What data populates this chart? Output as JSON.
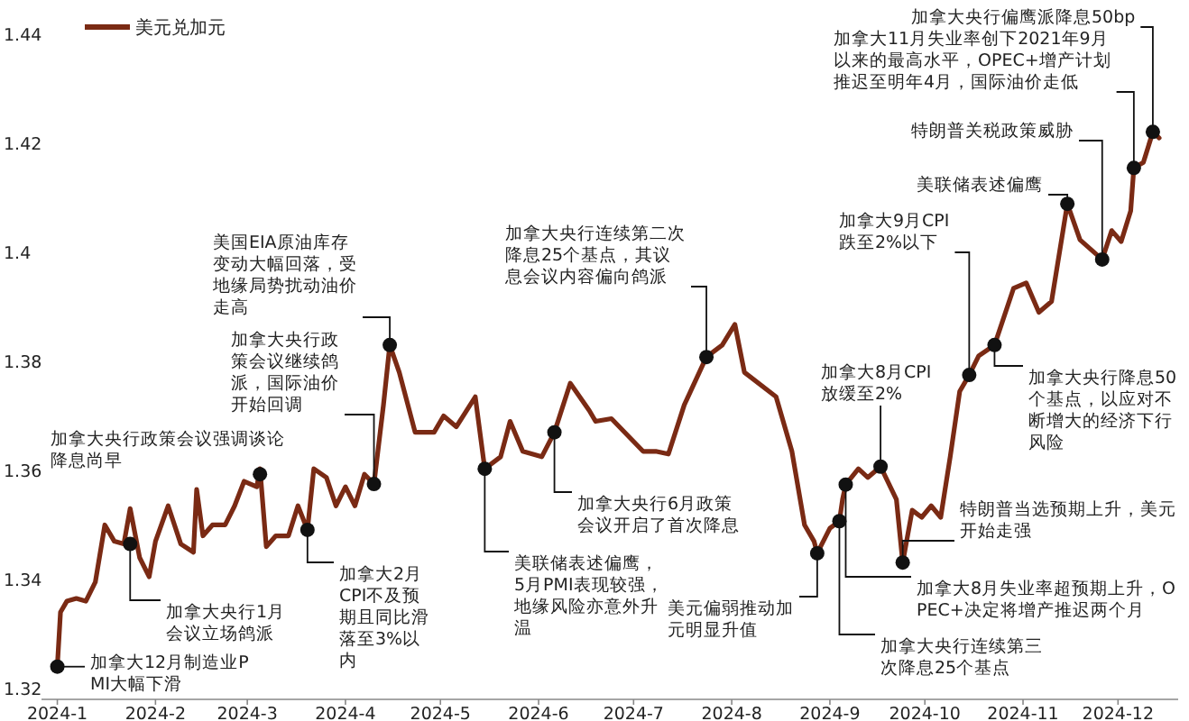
{
  "chart_data": {
    "type": "line",
    "legend": "top left",
    "marker": "none",
    "grid": false,
    "xlim": [
      "2023-12-27",
      "2024-12-20"
    ],
    "ylim": [
      1.318,
      1.44
    ],
    "xticks": [
      {
        "value": "2024-01-01",
        "label": "2024-1"
      },
      {
        "value": "2024-02-01",
        "label": "2024-2"
      },
      {
        "value": "2024-03-01",
        "label": "2024-3"
      },
      {
        "value": "2024-04-01",
        "label": "2024-4"
      },
      {
        "value": "2024-05-01",
        "label": "2024-5"
      },
      {
        "value": "2024-06-01",
        "label": "2024-6"
      },
      {
        "value": "2024-07-01",
        "label": "2024-7"
      },
      {
        "value": "2024-08-01",
        "label": "2024-8"
      },
      {
        "value": "2024-09-01",
        "label": "2024-9"
      },
      {
        "value": "2024-10-01",
        "label": "2024-10"
      },
      {
        "value": "2024-11-01",
        "label": "2024-11"
      },
      {
        "value": "2024-12-01",
        "label": "2024-12"
      }
    ],
    "yticks": [
      1.32,
      1.34,
      1.36,
      1.38,
      1.4,
      1.42,
      1.44
    ],
    "x": [
      "2024-01-01",
      "2024-01-02",
      "2024-01-04",
      "2024-01-07",
      "2024-01-10",
      "2024-01-13",
      "2024-01-16",
      "2024-01-19",
      "2024-01-22",
      "2024-01-24",
      "2024-01-27",
      "2024-01-30",
      "2024-02-01",
      "2024-02-05",
      "2024-02-09",
      "2024-02-13",
      "2024-02-14",
      "2024-02-16",
      "2024-02-19",
      "2024-02-23",
      "2024-02-26",
      "2024-02-29",
      "2024-03-04",
      "2024-03-05",
      "2024-03-07",
      "2024-03-10",
      "2024-03-14",
      "2024-03-17",
      "2024-03-20",
      "2024-03-22",
      "2024-03-26",
      "2024-03-29",
      "2024-04-01",
      "2024-04-04",
      "2024-04-07",
      "2024-04-10",
      "2024-04-13",
      "2024-04-15",
      "2024-04-18",
      "2024-04-23",
      "2024-04-29",
      "2024-05-02",
      "2024-05-06",
      "2024-05-12",
      "2024-05-15",
      "2024-05-20",
      "2024-05-23",
      "2024-05-27",
      "2024-06-02",
      "2024-06-06",
      "2024-06-11",
      "2024-06-17",
      "2024-06-19",
      "2024-06-24",
      "2024-07-04",
      "2024-07-08",
      "2024-07-12",
      "2024-07-17",
      "2024-07-24",
      "2024-07-29",
      "2024-08-02",
      "2024-08-05",
      "2024-08-15",
      "2024-08-20",
      "2024-08-24",
      "2024-08-27",
      "2024-08-28",
      "2024-09-01",
      "2024-09-04",
      "2024-09-05",
      "2024-09-06",
      "2024-09-10",
      "2024-09-13",
      "2024-09-17",
      "2024-09-22",
      "2024-09-24",
      "2024-09-27",
      "2024-09-30",
      "2024-10-03",
      "2024-10-06",
      "2024-10-09",
      "2024-10-12",
      "2024-10-15",
      "2024-10-18",
      "2024-10-23",
      "2024-10-29",
      "2024-11-02",
      "2024-11-06",
      "2024-11-10",
      "2024-11-15",
      "2024-11-19",
      "2024-11-26",
      "2024-11-29",
      "2024-12-02",
      "2024-12-05",
      "2024-12-06",
      "2024-12-09",
      "2024-12-12",
      "2024-12-14"
    ],
    "series": [
      {
        "name": "美元兑加元",
        "color": "#7a2a14",
        "values": [
          1.324,
          1.334,
          1.336,
          1.3365,
          1.336,
          1.3395,
          1.35,
          1.347,
          1.3465,
          1.353,
          1.344,
          1.3405,
          1.347,
          1.3535,
          1.3465,
          1.345,
          1.3565,
          1.348,
          1.35,
          1.35,
          1.3535,
          1.358,
          1.357,
          1.3603,
          1.346,
          1.348,
          1.348,
          1.3535,
          1.3491,
          1.3603,
          1.3587,
          1.3535,
          1.357,
          1.3535,
          1.3593,
          1.3575,
          1.372,
          1.383,
          1.378,
          1.367,
          1.367,
          1.37,
          1.368,
          1.3735,
          1.3603,
          1.3625,
          1.369,
          1.3635,
          1.3625,
          1.367,
          1.376,
          1.371,
          1.369,
          1.3695,
          1.3635,
          1.3635,
          1.363,
          1.372,
          1.3808,
          1.383,
          1.3868,
          1.378,
          1.3735,
          1.3635,
          1.35,
          1.347,
          1.3448,
          1.3494,
          1.3507,
          1.3547,
          1.3574,
          1.3603,
          1.3587,
          1.3607,
          1.3547,
          1.3431,
          1.3527,
          1.3514,
          1.3535,
          1.3514,
          1.3625,
          1.3745,
          1.3775,
          1.381,
          1.383,
          1.3934,
          1.3944,
          1.389,
          1.391,
          1.4089,
          1.4023,
          1.3987,
          1.404,
          1.402,
          1.4076,
          1.4155,
          1.4165,
          1.4221,
          1.421
        ]
      }
    ],
    "annotations": [
      {
        "text": "加拿大12月制造业PMI大幅下滑",
        "x": "2024-01-01",
        "y": 1.324
      },
      {
        "text": "加拿大央行1月会议立场鸽派",
        "x": "2024-01-24",
        "y": 1.3465
      },
      {
        "text": "加拿大央行政策会议强调谈论降息尚早",
        "x": "2024-03-05",
        "y": 1.3593
      },
      {
        "text": "加拿大2月CPI不及预期且同比滑落至3%以内",
        "x": "2024-03-20",
        "y": 1.3491
      },
      {
        "text": "加拿大央行政策会议继续鸽派，国际油价开始回调",
        "x": "2024-04-10",
        "y": 1.3575
      },
      {
        "text": "美国EIA原油库存变动大幅回落，受地缘局势扰动油价走高",
        "x": "2024-04-15",
        "y": 1.383
      },
      {
        "text": "美联储表述偏鹰，5月PMI表现较强，地缘风险亦意外升温",
        "x": "2024-05-15",
        "y": 1.3603
      },
      {
        "text": "加拿大央行6月政策会议开启了首次降息",
        "x": "2024-06-06",
        "y": 1.367
      },
      {
        "text": "加拿大央行连续第二次降息25个基点，其议息会议内容偏向鸽派",
        "x": "2024-07-24",
        "y": 1.3808
      },
      {
        "text": "美元偏弱推动加元明显升值",
        "x": "2024-08-28",
        "y": 1.3448
      },
      {
        "text": "加拿大央行连续第三次降息25个基点",
        "x": "2024-09-04",
        "y": 1.3507
      },
      {
        "text": "加拿大8月失业率超预期上升，OPEC+决定将增产推迟两个月",
        "x": "2024-09-06",
        "y": 1.3574
      },
      {
        "text": "加拿大8月CPI放缓至2%",
        "x": "2024-09-17",
        "y": 1.3607
      },
      {
        "text": "特朗普当选预期上升，美元开始走强",
        "x": "2024-09-24",
        "y": 1.3431
      },
      {
        "text": "加拿大9月CPI跌至2%以下",
        "x": "2024-10-15",
        "y": 1.3775
      },
      {
        "text": "加拿大央行降息50个基点，以应对不断增大的经济下行风险",
        "x": "2024-10-23",
        "y": 1.383
      },
      {
        "text": "美联储表述偏鹰",
        "x": "2024-11-15",
        "y": 1.4089
      },
      {
        "text": "特朗普关税政策威胁",
        "x": "2024-11-26",
        "y": 1.3987
      },
      {
        "text": "加拿大11月失业率创下2021年9月以来的最高水平，OPEC+增产计划推迟至明年4月，国际油价走低",
        "x": "2024-12-06",
        "y": 1.4155
      },
      {
        "text": "加拿大央行偏鹰派降息50bp",
        "x": "2024-12-12",
        "y": 1.4221
      }
    ]
  }
}
